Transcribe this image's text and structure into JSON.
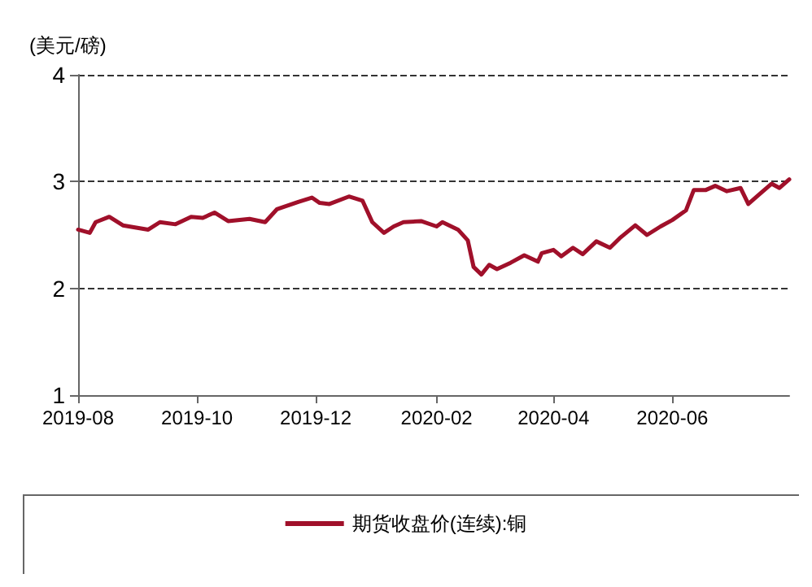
{
  "chart_data": {
    "type": "line",
    "ylabel": "(美元/磅)",
    "x": [
      "2019-08-01",
      "2019-08-07",
      "2019-08-10",
      "2019-08-17",
      "2019-08-24",
      "2019-09-06",
      "2019-09-12",
      "2019-09-20",
      "2019-09-28",
      "2019-10-04",
      "2019-10-10",
      "2019-10-17",
      "2019-10-28",
      "2019-11-05",
      "2019-11-11",
      "2019-11-22",
      "2019-11-29",
      "2019-12-03",
      "2019-12-08",
      "2019-12-18",
      "2019-12-25",
      "2019-12-30",
      "2020-01-05",
      "2020-01-10",
      "2020-01-15",
      "2020-01-24",
      "2020-02-01",
      "2020-02-04",
      "2020-02-12",
      "2020-02-17",
      "2020-02-20",
      "2020-02-24",
      "2020-02-28",
      "2020-03-03",
      "2020-03-10",
      "2020-03-17",
      "2020-03-24",
      "2020-03-26",
      "2020-04-01",
      "2020-04-05",
      "2020-04-11",
      "2020-04-16",
      "2020-04-23",
      "2020-04-30",
      "2020-05-05",
      "2020-05-13",
      "2020-05-19",
      "2020-05-26",
      "2020-06-01",
      "2020-06-08",
      "2020-06-12",
      "2020-06-18",
      "2020-06-23",
      "2020-06-29",
      "2020-07-06",
      "2020-07-10",
      "2020-07-15",
      "2020-07-22",
      "2020-07-26",
      "2020-07-31"
    ],
    "series": [
      {
        "name": "期货收盘价(连续):铜",
        "color": "#a0102a",
        "values": [
          2.55,
          2.52,
          2.62,
          2.67,
          2.59,
          2.55,
          2.62,
          2.6,
          2.67,
          2.66,
          2.71,
          2.63,
          2.65,
          2.62,
          2.74,
          2.81,
          2.85,
          2.8,
          2.79,
          2.86,
          2.82,
          2.62,
          2.52,
          2.58,
          2.62,
          2.63,
          2.58,
          2.62,
          2.55,
          2.45,
          2.2,
          2.13,
          2.22,
          2.18,
          2.24,
          2.31,
          2.25,
          2.33,
          2.36,
          2.3,
          2.38,
          2.32,
          2.44,
          2.38,
          2.47,
          2.59,
          2.5,
          2.58,
          2.64,
          2.73,
          2.92,
          2.92,
          2.96,
          2.91,
          2.94,
          2.79,
          2.87,
          2.98,
          2.94,
          3.02
        ]
      }
    ],
    "xlim": [
      "2019-08-01",
      "2020-07-31"
    ],
    "xticks": [
      {
        "value": "2019-08-01",
        "label": "2019-08"
      },
      {
        "value": "2019-10-01",
        "label": "2019-10"
      },
      {
        "value": "2019-12-01",
        "label": "2019-12"
      },
      {
        "value": "2020-02-01",
        "label": "2020-02"
      },
      {
        "value": "2020-04-01",
        "label": "2020-04"
      },
      {
        "value": "2020-06-01",
        "label": "2020-06"
      }
    ],
    "ylim": [
      1,
      4
    ],
    "yticks": [
      1,
      2,
      3,
      4
    ],
    "grid": "y",
    "legend": "bottom",
    "marker": "none",
    "line_style": "solid"
  }
}
